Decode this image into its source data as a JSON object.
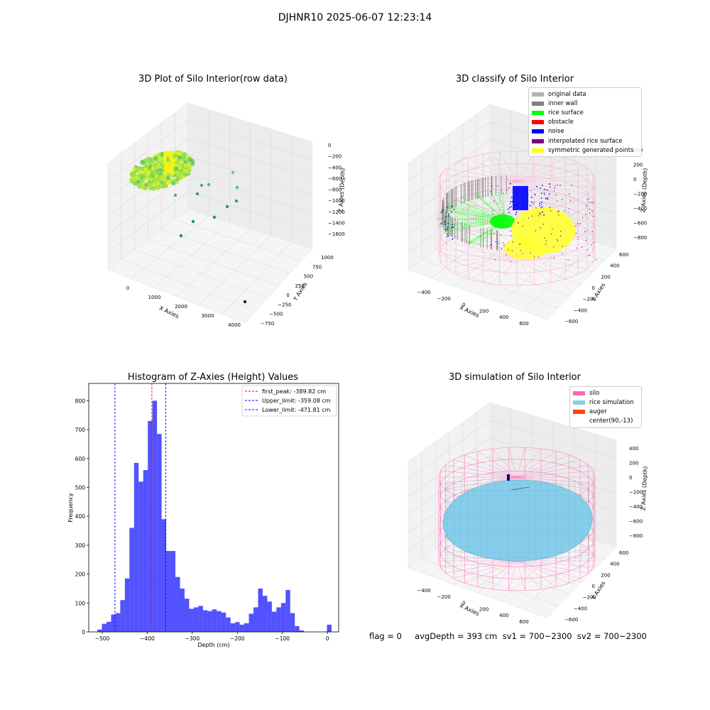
{
  "suptitle": "DJHNR10 2025-06-07 12:23:14",
  "panels": {
    "raw": {
      "title": "3D Plot of Silo Interior(row data)",
      "xlabel": "X Axies",
      "ylabel": "Y Axies",
      "zlabel": "Z Axies (Depth)",
      "xticks": [
        "0",
        "1000",
        "2000",
        "3000",
        "4000"
      ],
      "yticks": [
        "1000",
        "750",
        "500",
        "250",
        "0",
        "−250",
        "−500",
        "−750"
      ],
      "zticks": [
        "0",
        "−200",
        "−400",
        "−600",
        "−800",
        "−1000",
        "−1200",
        "−1400",
        "−1600"
      ]
    },
    "classify": {
      "title": "3D classify of Silo Interior",
      "xlabel": "X Axies",
      "ylabel": "Y Axies",
      "zlabel": "Z Axies (Depth)",
      "xticks": [
        "−400",
        "−200",
        "0",
        "200",
        "400",
        "600"
      ],
      "yticks": [
        "600",
        "400",
        "200",
        "0",
        "−200",
        "−400",
        "−600"
      ],
      "zticks": [
        "400",
        "200",
        "0",
        "−200",
        "−400",
        "−600",
        "−800"
      ],
      "legend": [
        {
          "label": "original data",
          "color": "#b3b3b3"
        },
        {
          "label": "inner wall",
          "color": "#808080"
        },
        {
          "label": "rice surface",
          "color": "#00ff00"
        },
        {
          "label": "obstacle",
          "color": "#ff0000"
        },
        {
          "label": "noise",
          "color": "#0000ff"
        },
        {
          "label": "interpolated rice surface",
          "color": "#800080"
        },
        {
          "label": "symmetric generated points",
          "color": "#ffff00"
        }
      ]
    },
    "simulation": {
      "title": "3D simulation of Silo Interior",
      "xlabel": "X Axies",
      "ylabel": "Y Axies",
      "zlabel": "Z Axies (Depth)",
      "xticks": [
        "−400",
        "−200",
        "0",
        "200",
        "400",
        "600"
      ],
      "yticks": [
        "600",
        "400",
        "200",
        "0",
        "−200",
        "−400",
        "−600"
      ],
      "zticks": [
        "400",
        "200",
        "0",
        "−200",
        "−400",
        "−600",
        "−800"
      ],
      "legend": [
        {
          "label": "silo",
          "color": "#ff69b4"
        },
        {
          "label": "rice simulation",
          "color": "#87ceeb"
        },
        {
          "label": "auger",
          "color": "#ff4500"
        },
        {
          "label": "center(90,-13)",
          "color": "none"
        }
      ]
    }
  },
  "footer": "flag = 0     avgDepth = 393 cm  sv1 = 700~2300  sv2 = 700~2300",
  "chart_data": [
    {
      "type": "bar",
      "title": "Histogram of Z-Axies (Height) Values",
      "xlabel": "Depth (cm)",
      "ylabel": "Frequency",
      "xlim": [
        -530,
        25
      ],
      "ylim": [
        0,
        860
      ],
      "xticks": [
        -500,
        -400,
        -300,
        -200,
        -100,
        0
      ],
      "yticks": [
        0,
        100,
        200,
        300,
        400,
        500,
        600,
        700,
        800
      ],
      "bar_color": "#0000ff",
      "bin_width": 10.2,
      "bins_start": [
        -511,
        -500.8,
        -490.6,
        -480.4,
        -470.2,
        -460,
        -449.8,
        -439.6,
        -429.4,
        -419.2,
        -409,
        -398.8,
        -388.6,
        -378.4,
        -368.2,
        -358,
        -347.8,
        -337.6,
        -327.4,
        -317.2,
        -307,
        -296.8,
        -286.6,
        -276.4,
        -266.2,
        -256,
        -245.8,
        -235.6,
        -225.4,
        -215.2,
        -205,
        -194.8,
        -184.6,
        -174.4,
        -164.2,
        -154,
        -143.8,
        -133.6,
        -123.4,
        -113.2,
        -103,
        -92.8,
        -82.6,
        -72.4,
        -62.2,
        -52,
        -41.8,
        -31.6,
        -21.4,
        -11.2,
        -1
      ],
      "values": [
        8,
        28,
        35,
        60,
        65,
        110,
        185,
        360,
        585,
        520,
        560,
        730,
        800,
        685,
        390,
        280,
        280,
        190,
        150,
        115,
        80,
        85,
        90,
        75,
        72,
        78,
        72,
        67,
        50,
        30,
        34,
        25,
        30,
        63,
        85,
        150,
        125,
        105,
        70,
        85,
        100,
        145,
        65,
        20,
        5,
        0,
        0,
        0,
        0,
        0,
        25
      ],
      "vlines": [
        {
          "x": -389.82,
          "color": "#ff0000",
          "style": "dashed",
          "label": "first_peak: -389.82 cm"
        },
        {
          "x": -359.08,
          "color": "#0000ff",
          "style": "dashed",
          "label": "Upper_limit: -359.08 cm"
        },
        {
          "x": -471.81,
          "color": "#0000ff",
          "style": "dashed",
          "label": "Lower_limit: -471.81 cm"
        }
      ],
      "legend_position": "upper-right"
    }
  ]
}
